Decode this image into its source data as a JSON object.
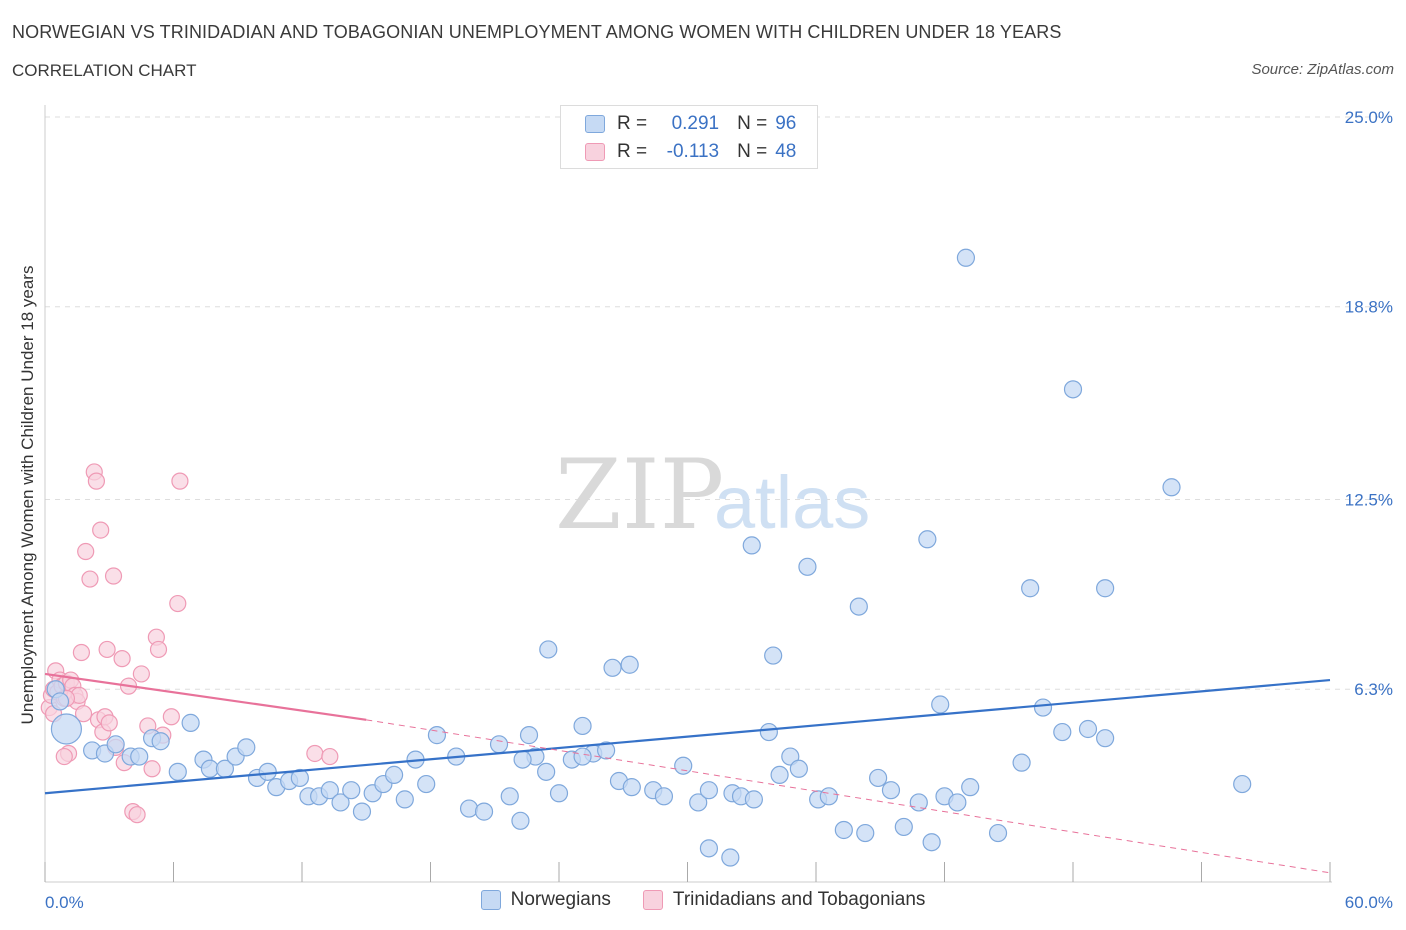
{
  "header": {
    "title": "NORWEGIAN VS TRINIDADIAN AND TOBAGONIAN UNEMPLOYMENT AMONG WOMEN WITH CHILDREN UNDER 18 YEARS",
    "subtitle": "CORRELATION CHART",
    "source": "Source: ZipAtlas.com"
  },
  "legend_top": {
    "rows": [
      {
        "r_label": "R =",
        "r_value": "0.291",
        "n_label": "N =",
        "n_value": "96"
      },
      {
        "r_label": "R =",
        "r_value": "-0.113",
        "n_label": "N =",
        "n_value": "48"
      }
    ]
  },
  "legend_bottom": {
    "items": [
      {
        "label": "Norwegians"
      },
      {
        "label": "Trinidadians and Tobagonians"
      }
    ]
  },
  "watermark": {
    "zip": "ZIP",
    "atlas": "atlas"
  },
  "colors": {
    "blue_fill": "#c6daf4",
    "blue_stroke": "#7fa8dc",
    "blue_line": "#3672c8",
    "pink_fill": "#f8d2de",
    "pink_stroke": "#ef9ab5",
    "pink_line": "#e8729a",
    "tick_text": "#3b72c4",
    "grid": "#dedede"
  },
  "chart_data": {
    "type": "scatter",
    "title": "NORWEGIAN VS TRINIDADIAN AND TOBAGONIAN UNEMPLOYMENT AMONG WOMEN WITH CHILDREN UNDER 18 YEARS",
    "xlabel": "",
    "ylabel": "Unemployment Among Women with Children Under 18 years",
    "xlim": [
      0,
      60
    ],
    "ylim": [
      0,
      25
    ],
    "x_tick_labels": [
      "0.0%",
      "60.0%"
    ],
    "y_ticks": [
      6.3,
      12.5,
      18.8,
      25.0
    ],
    "y_tick_labels": [
      "6.3%",
      "12.5%",
      "18.8%",
      "25.0%"
    ],
    "grid": "horizontal dashed",
    "legend_placement": "top-center and bottom",
    "series": [
      {
        "name": "Norwegians",
        "r": 0.291,
        "n": 96,
        "trend": {
          "x": [
            0,
            60
          ],
          "y": [
            2.9,
            6.6
          ]
        },
        "points": [
          [
            0.5,
            6.3
          ],
          [
            0.7,
            5.9
          ],
          [
            1.0,
            5.0
          ],
          [
            2.2,
            4.3
          ],
          [
            2.8,
            4.2
          ],
          [
            3.3,
            4.5
          ],
          [
            4.0,
            4.1
          ],
          [
            4.4,
            4.1
          ],
          [
            5.0,
            4.7
          ],
          [
            5.4,
            4.6
          ],
          [
            6.2,
            3.6
          ],
          [
            6.8,
            5.2
          ],
          [
            7.4,
            4.0
          ],
          [
            7.7,
            3.7
          ],
          [
            8.4,
            3.7
          ],
          [
            8.9,
            4.1
          ],
          [
            9.4,
            4.4
          ],
          [
            9.9,
            3.4
          ],
          [
            10.4,
            3.6
          ],
          [
            10.8,
            3.1
          ],
          [
            11.4,
            3.3
          ],
          [
            11.9,
            3.4
          ],
          [
            12.3,
            2.8
          ],
          [
            12.8,
            2.8
          ],
          [
            13.3,
            3.0
          ],
          [
            13.8,
            2.6
          ],
          [
            14.3,
            3.0
          ],
          [
            14.8,
            2.3
          ],
          [
            15.3,
            2.9
          ],
          [
            15.8,
            3.2
          ],
          [
            16.3,
            3.5
          ],
          [
            16.8,
            2.7
          ],
          [
            17.3,
            4.0
          ],
          [
            17.8,
            3.2
          ],
          [
            18.3,
            4.8
          ],
          [
            19.2,
            4.1
          ],
          [
            19.8,
            2.4
          ],
          [
            20.5,
            2.3
          ],
          [
            21.2,
            4.5
          ],
          [
            21.7,
            2.8
          ],
          [
            22.2,
            2.0
          ],
          [
            22.9,
            4.1
          ],
          [
            23.4,
            3.6
          ],
          [
            24.0,
            2.9
          ],
          [
            24.6,
            4.0
          ],
          [
            25.1,
            5.1
          ],
          [
            25.6,
            4.2
          ],
          [
            26.2,
            4.3
          ],
          [
            26.8,
            3.3
          ],
          [
            27.4,
            3.1
          ],
          [
            28.4,
            3.0
          ],
          [
            28.9,
            2.8
          ],
          [
            29.8,
            3.8
          ],
          [
            30.5,
            2.6
          ],
          [
            31.0,
            3.0
          ],
          [
            32.1,
            2.9
          ],
          [
            32.5,
            2.8
          ],
          [
            33.1,
            2.7
          ],
          [
            33.8,
            4.9
          ],
          [
            34.3,
            3.5
          ],
          [
            34.8,
            4.1
          ],
          [
            35.2,
            3.7
          ],
          [
            36.1,
            2.7
          ],
          [
            36.6,
            2.8
          ],
          [
            37.3,
            1.7
          ],
          [
            38.3,
            1.6
          ],
          [
            38.9,
            3.4
          ],
          [
            39.5,
            3.0
          ],
          [
            40.1,
            1.8
          ],
          [
            40.8,
            2.6
          ],
          [
            41.4,
            1.3
          ],
          [
            42.0,
            2.8
          ],
          [
            42.6,
            2.6
          ],
          [
            43.2,
            3.1
          ],
          [
            44.5,
            1.6
          ],
          [
            45.6,
            3.9
          ],
          [
            46.6,
            5.7
          ],
          [
            47.5,
            4.9
          ],
          [
            48.7,
            5.0
          ],
          [
            49.5,
            4.7
          ],
          [
            32.0,
            0.8
          ],
          [
            31.0,
            1.1
          ],
          [
            22.6,
            4.8
          ],
          [
            25.1,
            4.1
          ],
          [
            22.3,
            4.0
          ],
          [
            23.5,
            7.6
          ],
          [
            26.5,
            7.0
          ],
          [
            33.0,
            11.0
          ],
          [
            34.0,
            7.4
          ],
          [
            35.6,
            10.3
          ],
          [
            38.0,
            9.0
          ],
          [
            41.2,
            11.2
          ],
          [
            41.8,
            5.8
          ],
          [
            43.0,
            20.4
          ],
          [
            46.0,
            9.6
          ],
          [
            48.0,
            16.1
          ],
          [
            49.5,
            9.6
          ],
          [
            52.6,
            12.9
          ],
          [
            55.9,
            3.2
          ],
          [
            27.3,
            7.1
          ]
        ]
      },
      {
        "name": "Trinidadians and Tobagonians",
        "r": -0.113,
        "n": 48,
        "trend": {
          "x": [
            0,
            15
          ],
          "y": [
            6.8,
            5.3
          ]
        },
        "trend_dashed_extension": {
          "x": [
            15,
            60
          ],
          "y": [
            5.3,
            0.3
          ]
        },
        "points": [
          [
            0.2,
            5.7
          ],
          [
            0.3,
            6.1
          ],
          [
            0.4,
            6.3
          ],
          [
            0.5,
            6.9
          ],
          [
            0.6,
            6.2
          ],
          [
            0.7,
            6.6
          ],
          [
            0.8,
            6.4
          ],
          [
            0.9,
            6.0
          ],
          [
            1.0,
            6.5
          ],
          [
            1.1,
            4.2
          ],
          [
            1.2,
            6.6
          ],
          [
            1.3,
            6.4
          ],
          [
            1.4,
            6.1
          ],
          [
            1.5,
            5.9
          ],
          [
            1.6,
            6.1
          ],
          [
            1.7,
            7.5
          ],
          [
            1.8,
            5.5
          ],
          [
            1.9,
            10.8
          ],
          [
            2.1,
            9.9
          ],
          [
            2.3,
            13.4
          ],
          [
            2.4,
            13.1
          ],
          [
            2.5,
            5.3
          ],
          [
            2.6,
            11.5
          ],
          [
            2.7,
            4.9
          ],
          [
            2.8,
            5.4
          ],
          [
            2.9,
            7.6
          ],
          [
            3.0,
            5.2
          ],
          [
            3.2,
            10.0
          ],
          [
            3.3,
            4.4
          ],
          [
            3.6,
            7.3
          ],
          [
            3.9,
            6.4
          ],
          [
            4.1,
            2.3
          ],
          [
            4.3,
            2.2
          ],
          [
            4.5,
            6.8
          ],
          [
            4.8,
            5.1
          ],
          [
            5.0,
            3.7
          ],
          [
            5.2,
            8.0
          ],
          [
            5.3,
            7.6
          ],
          [
            5.5,
            4.8
          ],
          [
            5.9,
            5.4
          ],
          [
            6.3,
            13.1
          ],
          [
            6.2,
            9.1
          ],
          [
            12.6,
            4.2
          ],
          [
            13.3,
            4.1
          ],
          [
            0.9,
            4.1
          ],
          [
            1.0,
            6.0
          ],
          [
            0.4,
            5.5
          ],
          [
            3.7,
            3.9
          ]
        ]
      }
    ]
  }
}
